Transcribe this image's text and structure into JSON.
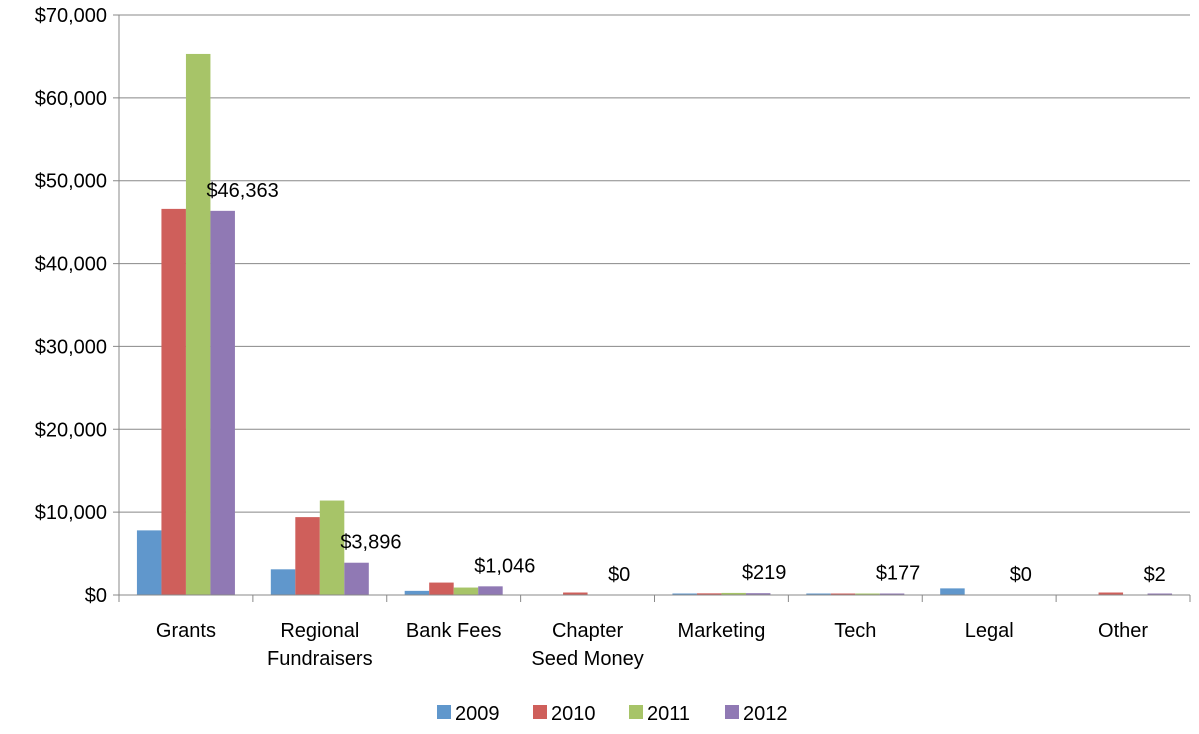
{
  "chart_data": {
    "type": "bar",
    "categories": [
      "Grants",
      "Regional\nFundraisers",
      "Bank Fees",
      "Chapter\nSeed Money",
      "Marketing",
      "Tech",
      "Legal",
      "Other"
    ],
    "series": [
      {
        "name": "2009",
        "color": "#6097CC",
        "values": [
          7800,
          3100,
          500,
          0,
          150,
          120,
          800,
          0
        ]
      },
      {
        "name": "2010",
        "color": "#CF5F5B",
        "values": [
          46600,
          9400,
          1500,
          300,
          200,
          150,
          0,
          300
        ]
      },
      {
        "name": "2011",
        "color": "#A7C468",
        "values": [
          65300,
          11400,
          900,
          0,
          250,
          180,
          0,
          0
        ]
      },
      {
        "name": "2012",
        "color": "#9079B4",
        "values": [
          46363,
          3896,
          1046,
          0,
          219,
          177,
          0,
          2
        ]
      }
    ],
    "data_labels": [
      "$46,363",
      "$3,896",
      "$1,046",
      "$0",
      "$219",
      "$177",
      "$0",
      "$2"
    ],
    "ylim": [
      0,
      70000
    ],
    "y_ticks": [
      {
        "value": 0,
        "label": "$0"
      },
      {
        "value": 10000,
        "label": "$10,000"
      },
      {
        "value": 20000,
        "label": "$20,000"
      },
      {
        "value": 30000,
        "label": "$30,000"
      },
      {
        "value": 40000,
        "label": "$40,000"
      },
      {
        "value": 50000,
        "label": "$50,000"
      },
      {
        "value": 60000,
        "label": "$60,000"
      },
      {
        "value": 70000,
        "label": "$70,000"
      }
    ],
    "title": "",
    "xlabel": "",
    "ylabel": "",
    "grid": true,
    "legend_position": "bottom",
    "gridline_color": "#888888"
  }
}
